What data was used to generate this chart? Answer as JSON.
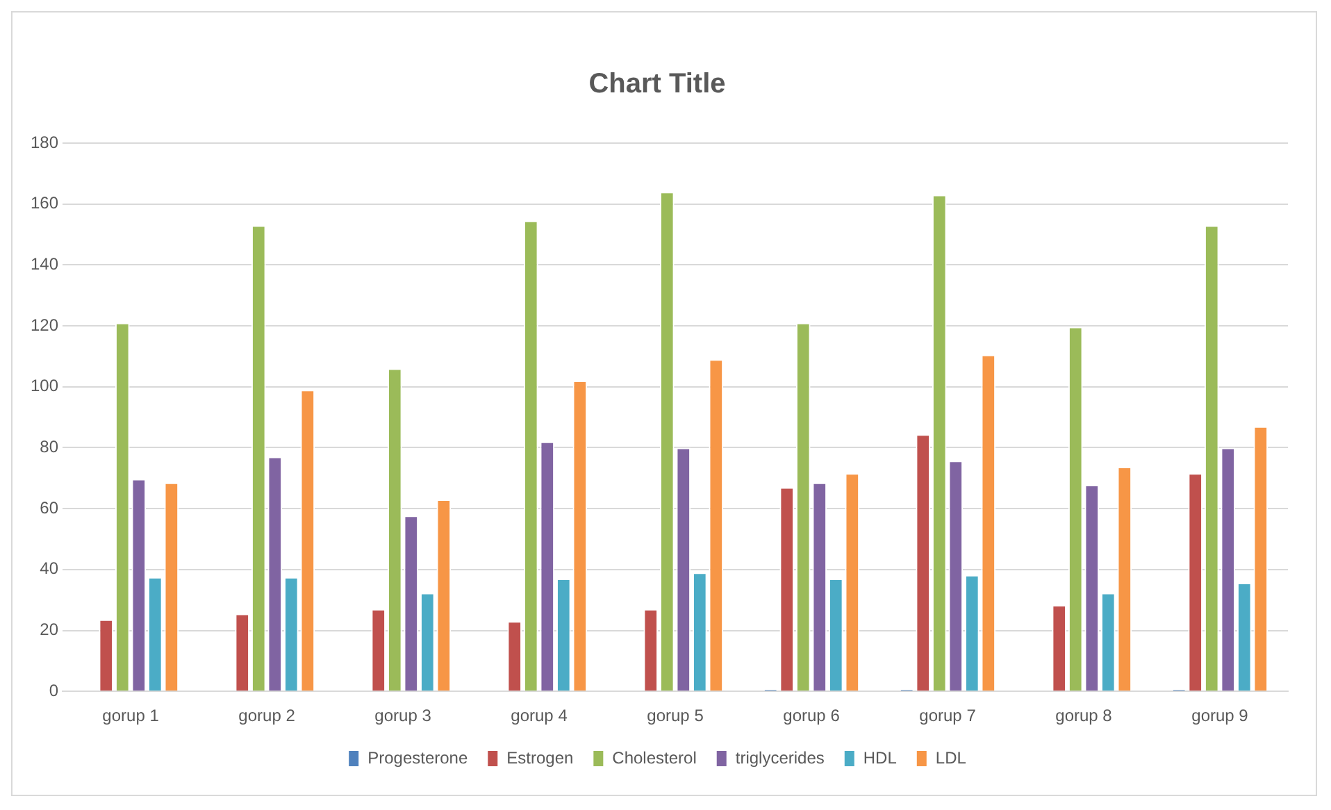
{
  "chart_data": {
    "type": "bar",
    "title": "Chart Title",
    "categories": [
      "gorup 1",
      "gorup 2",
      "gorup 3",
      "gorup 4",
      "gorup 5",
      "gorup 6",
      "gorup 7",
      "gorup 8",
      "gorup 9"
    ],
    "series": [
      {
        "name": "Progesterone",
        "color": "#4f81bd",
        "values": [
          0,
          0,
          0,
          0,
          0,
          0.7,
          0.7,
          0,
          0.7
        ]
      },
      {
        "name": "Estrogen",
        "color": "#c0504d",
        "values": [
          23.6,
          25.5,
          27,
          23,
          27,
          67,
          84.4,
          28.3,
          71.6
        ]
      },
      {
        "name": "Cholesterol",
        "color": "#9bbb59",
        "values": [
          121,
          153,
          106,
          154.5,
          164,
          121,
          163,
          119.7,
          153
        ]
      },
      {
        "name": "triglycerides",
        "color": "#8064a2",
        "values": [
          69.7,
          77,
          57.7,
          82,
          80,
          68.5,
          75.7,
          67.8,
          80
        ]
      },
      {
        "name": "HDL",
        "color": "#4bacc6",
        "values": [
          37.5,
          37.5,
          32.3,
          37,
          39,
          37,
          38.2,
          32.3,
          35.6
        ]
      },
      {
        "name": "LDL",
        "color": "#f79646",
        "values": [
          68.5,
          99,
          63,
          102,
          109,
          71.6,
          110.5,
          73.7,
          87
        ]
      }
    ],
    "ylim": [
      0,
      180
    ],
    "yticks": [
      0,
      20,
      40,
      60,
      80,
      100,
      120,
      140,
      160,
      180
    ],
    "grid": "y",
    "legend": "bottom"
  }
}
